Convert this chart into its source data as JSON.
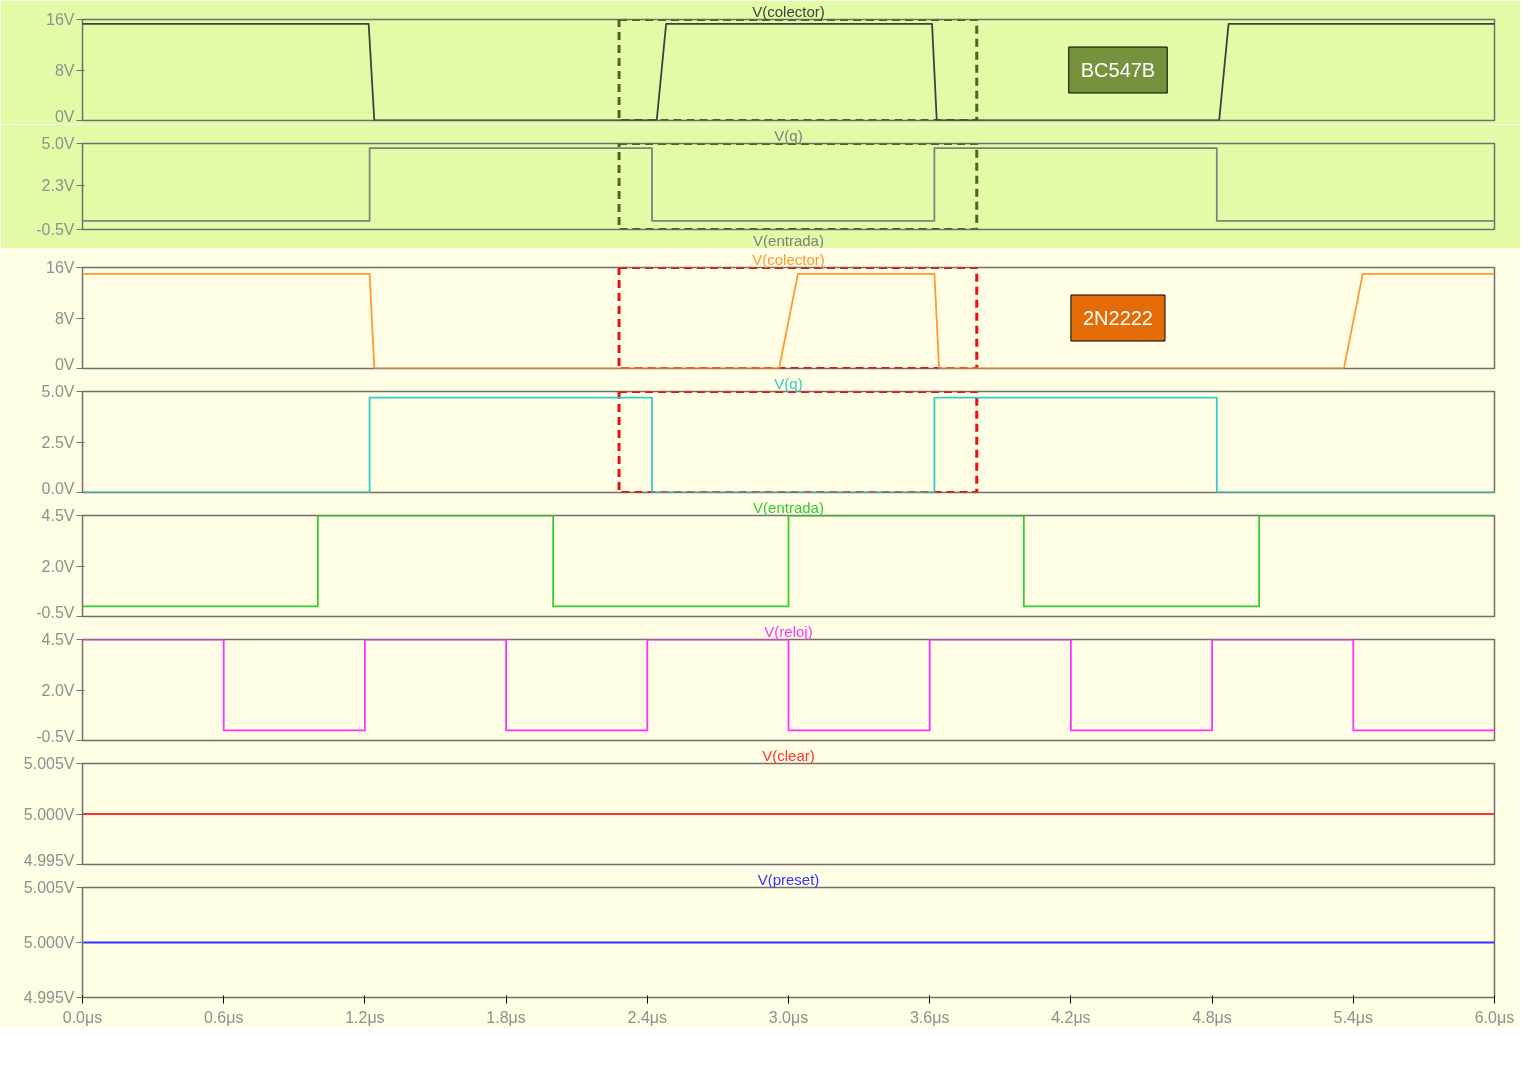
{
  "chart_data": [
    {
      "type": "line",
      "title": "V(colector)",
      "x": [
        0,
        1.216,
        1.24,
        2.44,
        2.48,
        3.61,
        3.63,
        4.83,
        4.87,
        6.0
      ],
      "series": [
        {
          "color": "#404040",
          "values": [
            15.3,
            15.3,
            0,
            0,
            15.3,
            15.3,
            0,
            0,
            15.3,
            15.3
          ]
        }
      ],
      "xlim": [
        0,
        6
      ],
      "ylim": [
        0,
        16
      ],
      "yticks": [
        {
          "value": 0,
          "label": "0V"
        },
        {
          "value": 8,
          "label": "8V"
        },
        {
          "value": 16,
          "label": "16V"
        }
      ],
      "tick_labels": "y",
      "annotations": [
        "BC547B"
      ]
    },
    {
      "type": "line",
      "title": "V(q)",
      "x": [
        0,
        1.22,
        1.22,
        2.42,
        2.42,
        3.62,
        3.62,
        4.82,
        4.82,
        6.0
      ],
      "series": [
        {
          "color": "#808080",
          "values": [
            0.05,
            0.05,
            4.7,
            4.7,
            0.05,
            0.05,
            4.7,
            4.7,
            0.05,
            0.05
          ]
        }
      ],
      "xlim": [
        0,
        6
      ],
      "ylim": [
        -0.5,
        5.0
      ],
      "yticks": [
        {
          "value": -0.5,
          "label": "-0.5V"
        },
        {
          "value": 2.3,
          "label": "2.3V"
        },
        {
          "value": 5.0,
          "label": "5.0V"
        }
      ],
      "tick_labels": "y",
      "annotations": [
        "V(entrada)"
      ]
    },
    {
      "type": "line",
      "title": "V(colector)",
      "x": [
        0,
        1.22,
        1.24,
        2.96,
        3.04,
        3.62,
        3.64,
        5.36,
        5.44,
        6.0
      ],
      "series": [
        {
          "color": "#ff9933",
          "values": [
            15,
            15,
            0,
            0,
            15,
            15,
            0,
            0,
            15,
            15
          ]
        }
      ],
      "xlim": [
        0,
        6
      ],
      "ylim": [
        0,
        16
      ],
      "yticks": [
        {
          "value": 0,
          "label": "0V"
        },
        {
          "value": 8,
          "label": "8V"
        },
        {
          "value": 16,
          "label": "16V"
        }
      ],
      "tick_labels": "y",
      "annotations": [
        "2N2222"
      ]
    },
    {
      "type": "line",
      "title": "V(q)",
      "x": [
        0,
        1.22,
        1.22,
        2.42,
        2.42,
        3.62,
        3.62,
        4.82,
        4.82,
        6.0
      ],
      "series": [
        {
          "color": "#33cccc",
          "values": [
            0,
            0,
            4.7,
            4.7,
            0,
            0,
            4.7,
            4.7,
            0,
            0
          ]
        }
      ],
      "xlim": [
        0,
        6
      ],
      "ylim": [
        0,
        5.0
      ],
      "yticks": [
        {
          "value": 0,
          "label": "0.0V"
        },
        {
          "value": 2.5,
          "label": "2.5V"
        },
        {
          "value": 5.0,
          "label": "5.0V"
        }
      ],
      "tick_labels": "y"
    },
    {
      "type": "line",
      "title": "V(entrada)",
      "x": [
        0,
        1,
        1,
        2,
        2,
        3,
        3,
        4,
        4,
        5,
        5,
        6
      ],
      "series": [
        {
          "color": "#33cc33",
          "values": [
            0,
            0,
            4.5,
            4.5,
            0,
            0,
            4.5,
            4.5,
            0,
            0,
            4.5,
            4.5
          ]
        }
      ],
      "xlim": [
        0,
        6
      ],
      "ylim": [
        -0.5,
        4.5
      ],
      "yticks": [
        {
          "value": -0.5,
          "label": "-0.5V"
        },
        {
          "value": 2.0,
          "label": "2.0V"
        },
        {
          "value": 4.5,
          "label": "4.5V"
        }
      ],
      "tick_labels": "y"
    },
    {
      "type": "line",
      "title": "V(reloj)",
      "x": [
        0,
        0.6,
        0.6,
        1.2,
        1.2,
        1.8,
        1.8,
        2.4,
        2.4,
        3.0,
        3.0,
        3.6,
        3.6,
        4.2,
        4.2,
        4.8,
        4.8,
        5.4,
        5.4,
        6.0
      ],
      "series": [
        {
          "color": "#ff33ff",
          "values": [
            4.5,
            4.5,
            0,
            0,
            4.5,
            4.5,
            0,
            0,
            4.5,
            4.5,
            0,
            0,
            4.5,
            4.5,
            0,
            0,
            4.5,
            4.5,
            0,
            0
          ]
        }
      ],
      "xlim": [
        0,
        6
      ],
      "ylim": [
        -0.5,
        4.5
      ],
      "yticks": [
        {
          "value": -0.5,
          "label": "-0.5V"
        },
        {
          "value": 2.0,
          "label": "2.0V"
        },
        {
          "value": 4.5,
          "label": "4.5V"
        }
      ],
      "tick_labels": "y"
    },
    {
      "type": "line",
      "title": "V(clear)",
      "x": [
        0,
        6
      ],
      "series": [
        {
          "color": "#ff3333",
          "values": [
            5.0,
            5.0
          ]
        }
      ],
      "xlim": [
        0,
        6
      ],
      "ylim": [
        4.995,
        5.005
      ],
      "yticks": [
        {
          "value": 4.995,
          "label": "4.995V"
        },
        {
          "value": 5.0,
          "label": "5.000V"
        },
        {
          "value": 5.005,
          "label": "5.005V"
        }
      ],
      "tick_labels": "y"
    },
    {
      "type": "line",
      "title": "V(preset)",
      "x": [
        0,
        6
      ],
      "series": [
        {
          "color": "#3333ff",
          "values": [
            5.0,
            5.0
          ]
        }
      ],
      "xlim": [
        0,
        6
      ],
      "ylim": [
        4.995,
        5.005
      ],
      "yticks": [
        {
          "value": 4.995,
          "label": "4.995V"
        },
        {
          "value": 5.0,
          "label": "5.000V"
        },
        {
          "value": 5.005,
          "label": "5.005V"
        }
      ],
      "xticks": [
        {
          "value": 0,
          "label": "0.0μs"
        },
        {
          "value": 0.6,
          "label": "0.6μs"
        },
        {
          "value": 1.2,
          "label": "1.2μs"
        },
        {
          "value": 1.8,
          "label": "1.8μs"
        },
        {
          "value": 2.4,
          "label": "2.4μs"
        },
        {
          "value": 3.0,
          "label": "3.0μs"
        },
        {
          "value": 3.6,
          "label": "3.6μs"
        },
        {
          "value": 4.2,
          "label": "4.2μs"
        },
        {
          "value": 4.8,
          "label": "4.8μs"
        },
        {
          "value": 5.4,
          "label": "5.4μs"
        },
        {
          "value": 6.0,
          "label": "6.0μs"
        }
      ]
    }
  ]
}
